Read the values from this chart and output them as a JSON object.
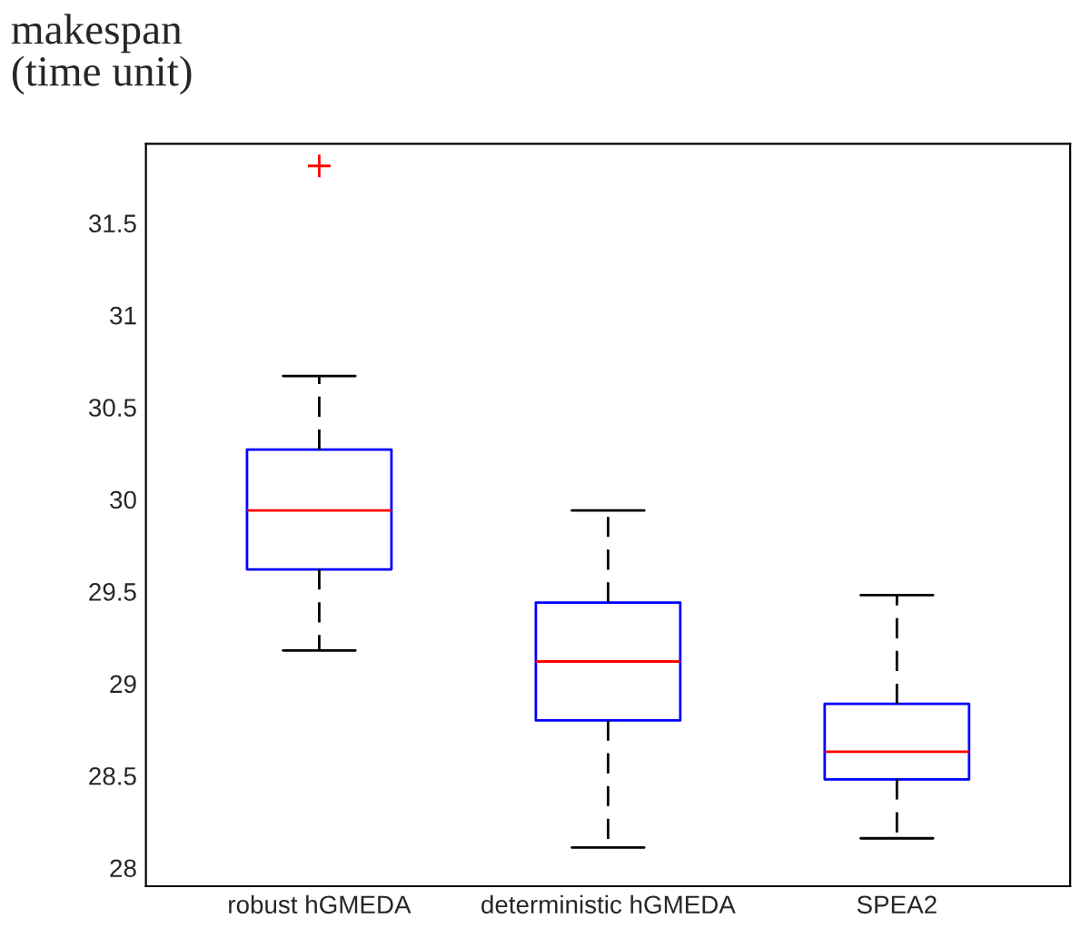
{
  "chart_data": {
    "type": "box",
    "ylabel": "makespan\n(time unit)",
    "categories": [
      "robust hGMEDA",
      "deterministic hGMEDA",
      "SPEA2"
    ],
    "boxes": [
      {
        "low": 29.18,
        "q1": 29.62,
        "median": 29.94,
        "q3": 30.27,
        "high": 30.67,
        "outliers": [
          31.81
        ]
      },
      {
        "low": 28.11,
        "q1": 28.8,
        "median": 29.12,
        "q3": 29.44,
        "high": 29.94
      },
      {
        "low": 28.16,
        "q1": 28.48,
        "median": 28.63,
        "q3": 28.89,
        "high": 29.48
      }
    ],
    "color": "#0000ff",
    "ylim": [
      27.9,
      31.93
    ],
    "yticks": [
      28,
      28.5,
      29,
      29.5,
      30,
      30.5,
      31,
      31.5
    ],
    "grid": false,
    "legend": false
  }
}
